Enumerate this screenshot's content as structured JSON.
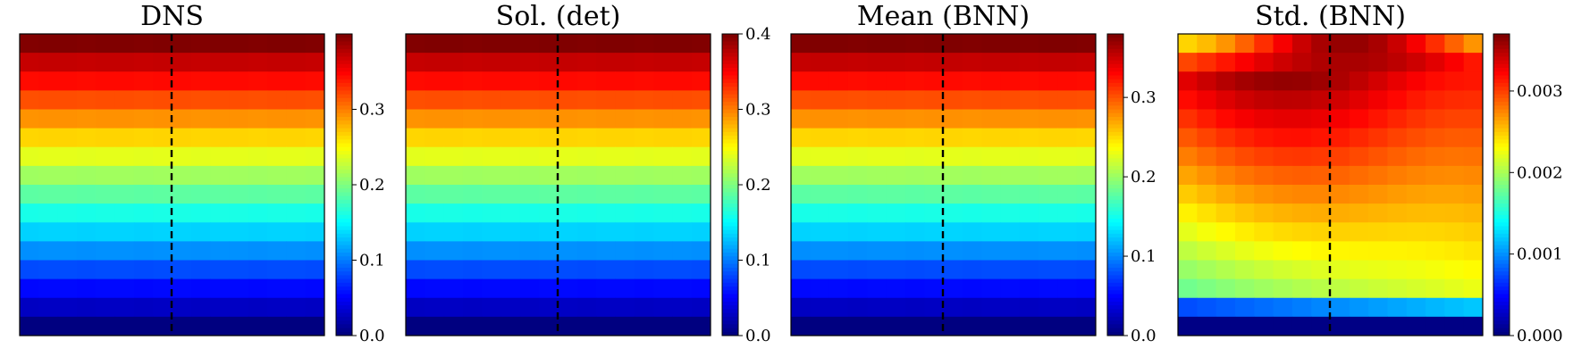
{
  "chart_data": [
    {
      "type": "heatmap",
      "title": "DNS",
      "colormap": "jet",
      "grid": "16x16",
      "divider": "dashed vertical line at the center column",
      "colorbar": {
        "ticks": [
          0.0,
          0.1,
          0.2,
          0.3
        ],
        "tick_labels": [
          "0.0",
          "0.1",
          "0.2",
          "0.3"
        ],
        "range": [
          0,
          0.4
        ]
      },
      "value_range": [
        0,
        0.4
      ],
      "row_profile_top_to_bottom": [
        0.4,
        0.373,
        0.347,
        0.32,
        0.293,
        0.267,
        0.24,
        0.213,
        0.187,
        0.16,
        0.133,
        0.107,
        0.08,
        0.053,
        0.027,
        0.0
      ]
    },
    {
      "type": "heatmap",
      "title": "Sol. (det)",
      "colormap": "jet",
      "grid": "16x16",
      "divider": "dashed vertical line at the center column",
      "colorbar": {
        "ticks": [
          0.0,
          0.1,
          0.2,
          0.3,
          0.4
        ],
        "tick_labels": [
          "0.0",
          "0.1",
          "0.2",
          "0.3",
          "0.4"
        ],
        "range": [
          0,
          0.4
        ]
      },
      "value_range": [
        0,
        0.4
      ],
      "row_profile_top_to_bottom": [
        0.4,
        0.373,
        0.347,
        0.32,
        0.293,
        0.267,
        0.24,
        0.213,
        0.187,
        0.16,
        0.133,
        0.107,
        0.08,
        0.053,
        0.027,
        0.0
      ]
    },
    {
      "type": "heatmap",
      "title": "Mean (BNN)",
      "colormap": "jet",
      "grid": "16x16",
      "divider": "dashed vertical line at the center column",
      "colorbar": {
        "ticks": [
          0.0,
          0.1,
          0.2,
          0.3
        ],
        "tick_labels": [
          "0.0",
          "0.1",
          "0.2",
          "0.3"
        ],
        "range": [
          0,
          0.38
        ]
      },
      "value_range": [
        0,
        0.38
      ],
      "row_profile_top_to_bottom": [
        0.38,
        0.355,
        0.329,
        0.304,
        0.279,
        0.253,
        0.228,
        0.203,
        0.177,
        0.152,
        0.127,
        0.101,
        0.076,
        0.051,
        0.025,
        0.0
      ]
    },
    {
      "type": "heatmap",
      "title": "Std. (BNN)",
      "colormap": "jet",
      "grid": "16x16",
      "divider": "dashed vertical line at the center column",
      "colorbar": {
        "ticks": [
          0.0,
          0.001,
          0.002,
          0.003
        ],
        "tick_labels": [
          "0.000",
          "0.001",
          "0.002",
          "0.003"
        ],
        "range": [
          0,
          0.0037
        ]
      },
      "value_range": [
        0,
        0.0037
      ],
      "pattern": "highest near the top edge, lower toward the lower-left, bottom row near 0"
    }
  ]
}
